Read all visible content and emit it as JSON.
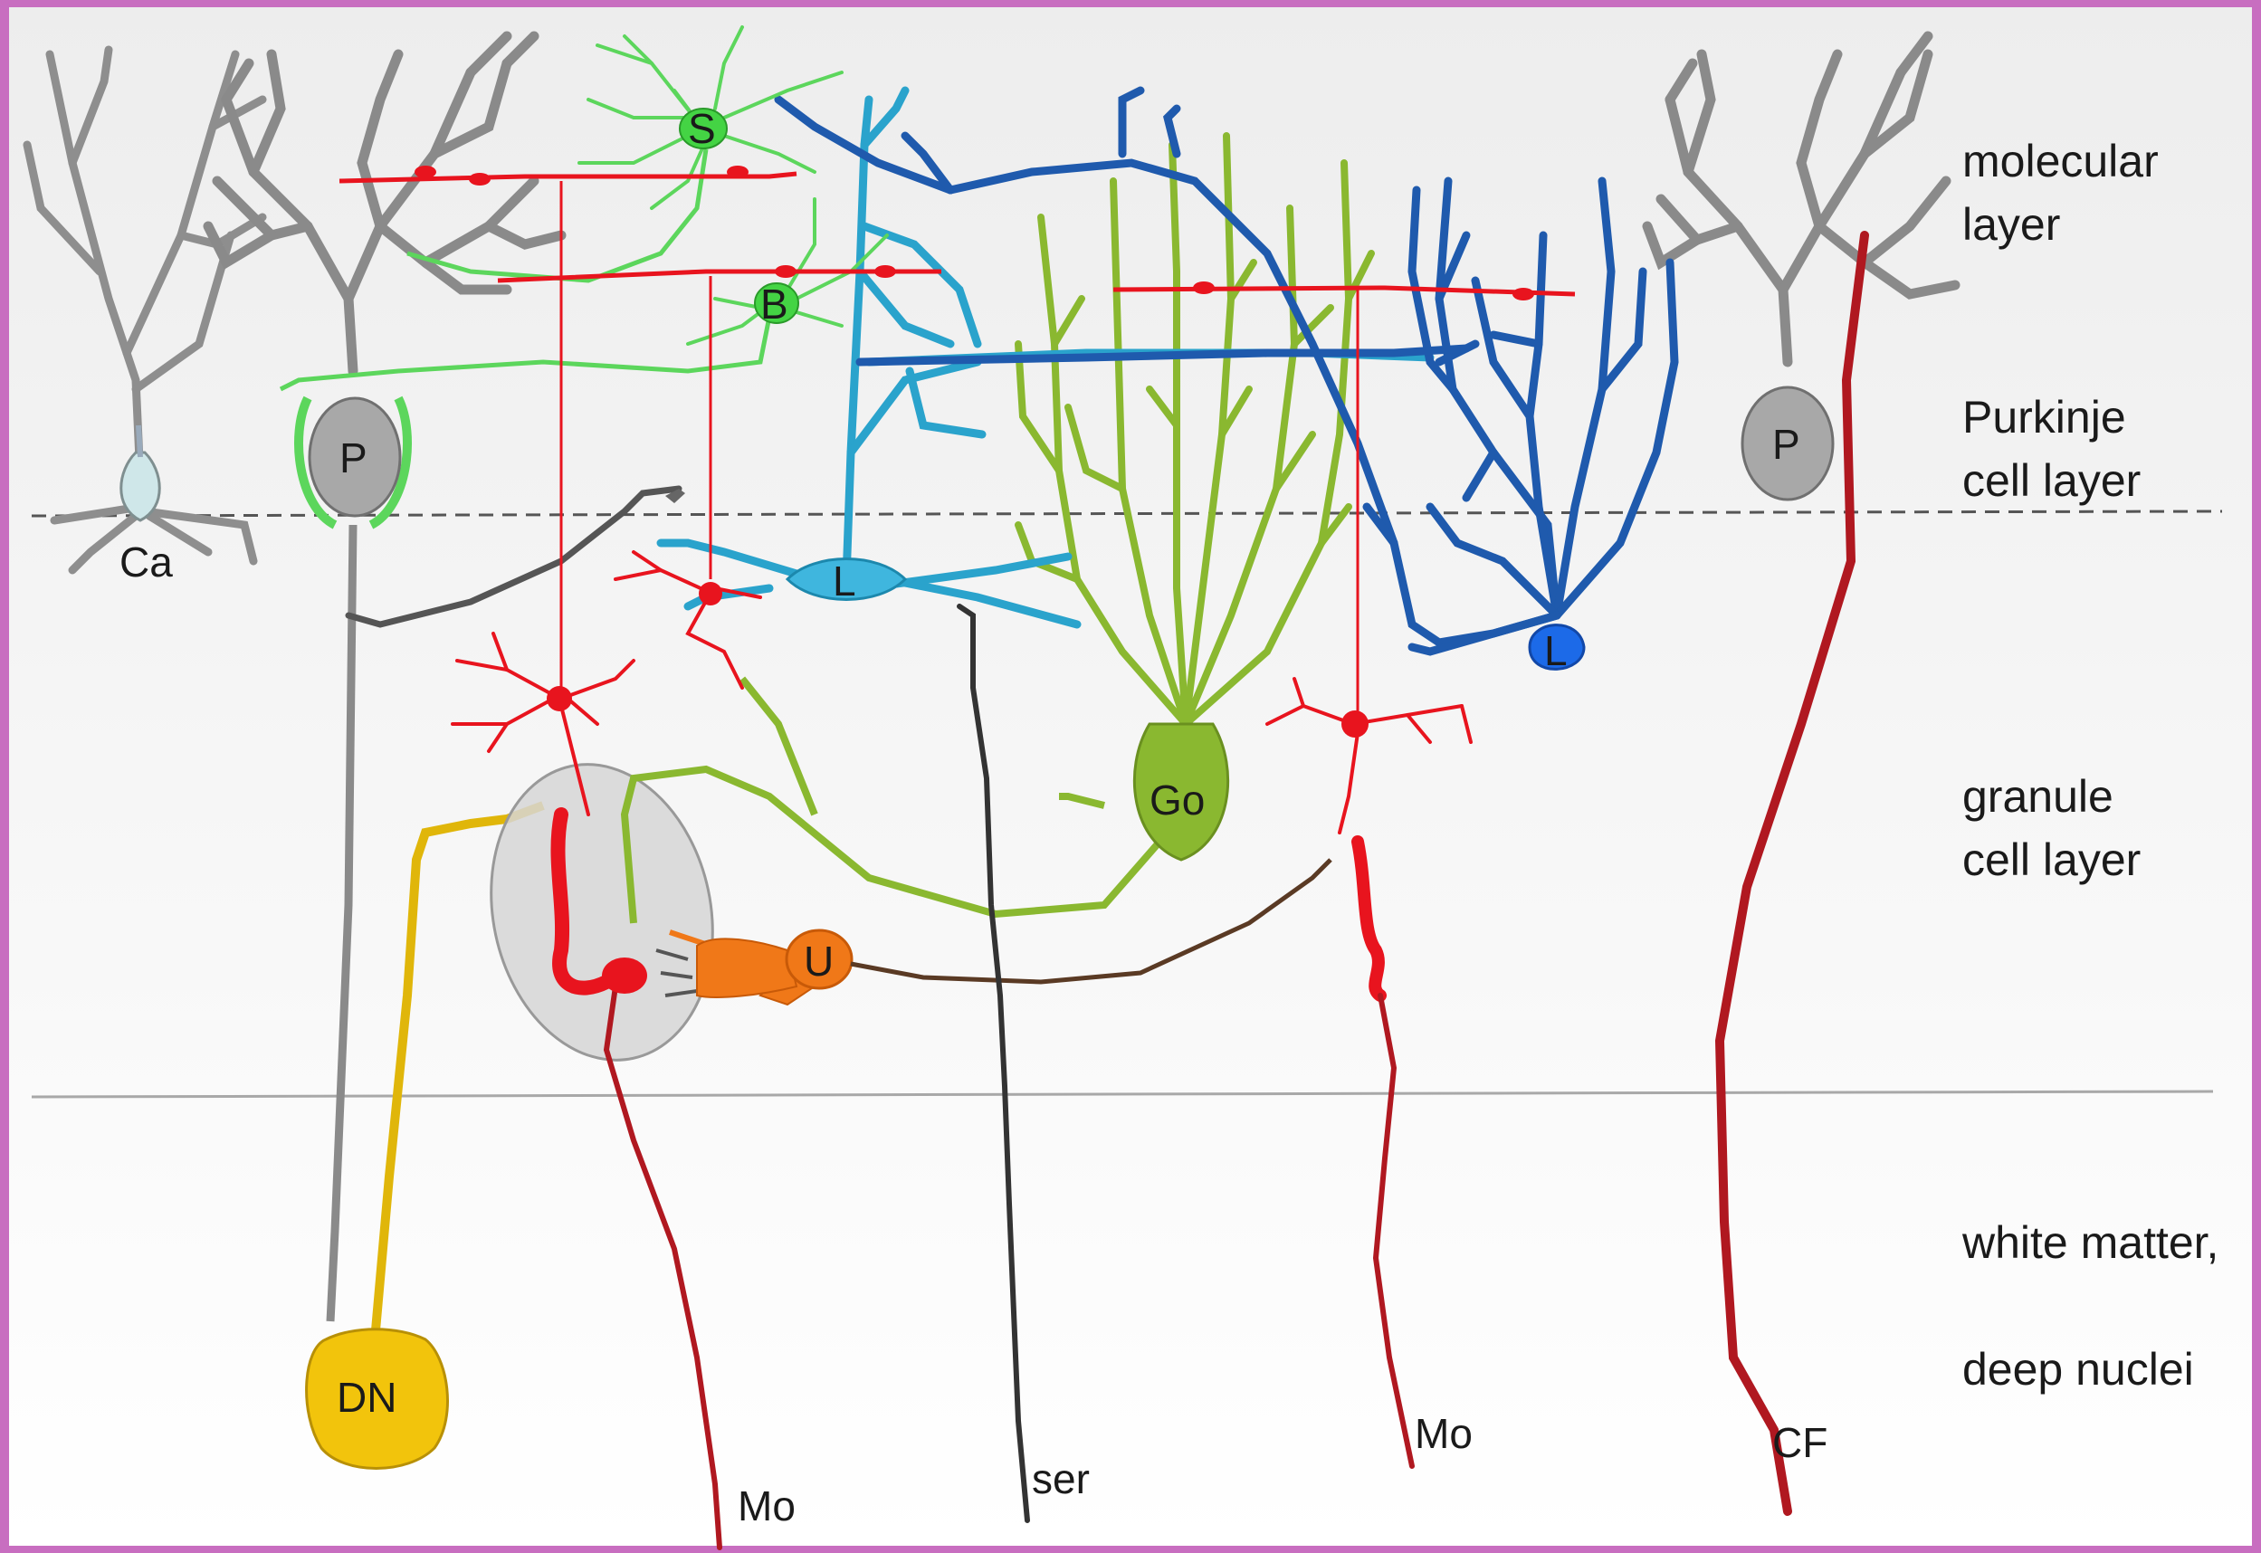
{
  "layers": {
    "molecular_line1": "molecular",
    "molecular_line2": "layer",
    "purkinje_line1": "Purkinje",
    "purkinje_line2": "cell layer",
    "granule_line1": "granule",
    "granule_line2": "cell layer",
    "white_line1": "white matter,",
    "white_line2": "deep nuclei"
  },
  "cells": {
    "stellate": "S",
    "basket": "B",
    "purkinje_left": "P",
    "purkinje_right": "P",
    "candelabrum": "Ca",
    "lugaro_center": "L",
    "lugaro_right": "L",
    "golgi": "Go",
    "unipolar_brush": "U",
    "deep_nucleus": "DN"
  },
  "fibers": {
    "mossy_left": "Mo",
    "serotonergic": "ser",
    "mossy_right": "Mo",
    "climbing": "CF"
  },
  "colors": {
    "frame": "#c86ec0",
    "granule": "#e8141e",
    "mossy": "#b01820",
    "stellate_basket": "#5cd65c",
    "lugaro_center": "#2aa3cc",
    "lugaro_right": "#1a5ec8",
    "golgi": "#8ab830",
    "purkinje": "#8e8e8e",
    "unipolar_brush": "#f07818",
    "deep_nucleus": "#f2c40c",
    "climbing_fiber": "#b01820",
    "serotonergic": "#303030"
  }
}
